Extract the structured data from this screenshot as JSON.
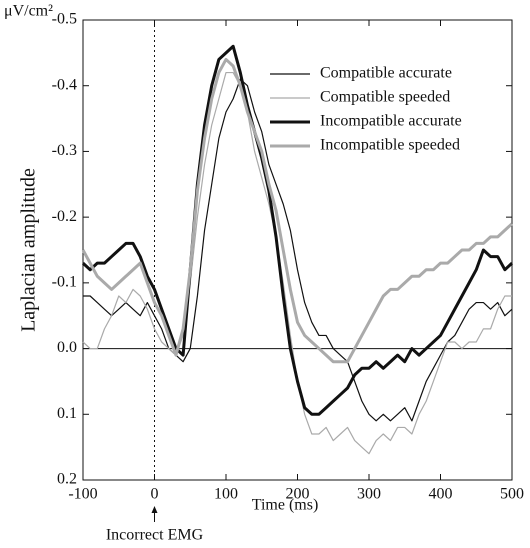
{
  "chart_data": {
    "type": "line",
    "unit_label": "μV/cm²",
    "y_label": "Laplacian amplitude",
    "x_label": "Time (ms)",
    "annotation": "Incorrect EMG",
    "annotation_x": 0,
    "y_inverted": true,
    "legend": "upper right",
    "x": [
      -100,
      -90,
      -80,
      -70,
      -60,
      -50,
      -40,
      -30,
      -20,
      -10,
      0,
      10,
      20,
      30,
      40,
      50,
      60,
      70,
      80,
      90,
      100,
      110,
      120,
      130,
      140,
      150,
      160,
      170,
      180,
      190,
      200,
      210,
      220,
      230,
      240,
      250,
      260,
      270,
      280,
      290,
      300,
      310,
      320,
      330,
      340,
      350,
      360,
      370,
      380,
      390,
      400,
      410,
      420,
      430,
      440,
      450,
      460,
      470,
      480,
      490,
      500
    ],
    "series": [
      {
        "name": "Compatible accurate",
        "color": "#111111",
        "linewidth": 1.2,
        "values": [
          -0.08,
          -0.08,
          -0.07,
          -0.06,
          -0.05,
          -0.06,
          -0.07,
          -0.06,
          -0.05,
          -0.07,
          -0.05,
          -0.03,
          0.0,
          0.01,
          0.02,
          0.0,
          -0.08,
          -0.18,
          -0.25,
          -0.32,
          -0.36,
          -0.38,
          -0.41,
          -0.4,
          -0.36,
          -0.33,
          -0.28,
          -0.25,
          -0.22,
          -0.18,
          -0.12,
          -0.07,
          -0.04,
          -0.02,
          -0.02,
          0.0,
          0.01,
          0.02,
          0.05,
          0.08,
          0.1,
          0.11,
          0.1,
          0.11,
          0.1,
          0.09,
          0.11,
          0.08,
          0.05,
          0.03,
          0.01,
          -0.01,
          -0.02,
          -0.04,
          -0.06,
          -0.07,
          -0.07,
          -0.06,
          -0.07,
          -0.05,
          -0.06
        ]
      },
      {
        "name": "Compatible speeded",
        "color": "#aaaaaa",
        "linewidth": 1.2,
        "values": [
          -0.01,
          0.0,
          0.0,
          -0.03,
          -0.05,
          -0.08,
          -0.07,
          -0.09,
          -0.08,
          -0.06,
          -0.03,
          -0.01,
          0.0,
          0.01,
          -0.02,
          -0.1,
          -0.2,
          -0.28,
          -0.34,
          -0.38,
          -0.42,
          -0.42,
          -0.4,
          -0.36,
          -0.3,
          -0.26,
          -0.22,
          -0.17,
          -0.1,
          -0.02,
          0.05,
          0.1,
          0.13,
          0.13,
          0.12,
          0.14,
          0.13,
          0.12,
          0.14,
          0.15,
          0.16,
          0.14,
          0.13,
          0.14,
          0.12,
          0.12,
          0.13,
          0.1,
          0.08,
          0.05,
          0.02,
          -0.01,
          -0.01,
          0.0,
          -0.01,
          -0.01,
          -0.03,
          -0.03,
          -0.06,
          -0.08,
          -0.08
        ]
      },
      {
        "name": "Incompatible accurate",
        "color": "#111111",
        "linewidth": 3,
        "values": [
          -0.13,
          -0.12,
          -0.13,
          -0.13,
          -0.14,
          -0.15,
          -0.16,
          -0.16,
          -0.14,
          -0.11,
          -0.09,
          -0.06,
          -0.03,
          0.0,
          0.01,
          -0.12,
          -0.25,
          -0.34,
          -0.4,
          -0.44,
          -0.45,
          -0.46,
          -0.42,
          -0.37,
          -0.33,
          -0.29,
          -0.24,
          -0.17,
          -0.08,
          0.0,
          0.05,
          0.09,
          0.1,
          0.1,
          0.09,
          0.08,
          0.07,
          0.06,
          0.04,
          0.03,
          0.03,
          0.02,
          0.03,
          0.02,
          0.01,
          0.02,
          0.0,
          0.01,
          0.0,
          -0.01,
          -0.02,
          -0.04,
          -0.06,
          -0.08,
          -0.1,
          -0.12,
          -0.15,
          -0.14,
          -0.14,
          -0.12,
          -0.13
        ]
      },
      {
        "name": "Incompatible speeded",
        "color": "#aaaaaa",
        "linewidth": 3,
        "values": [
          -0.15,
          -0.13,
          -0.11,
          -0.1,
          -0.09,
          -0.1,
          -0.11,
          -0.12,
          -0.13,
          -0.1,
          -0.07,
          -0.05,
          -0.02,
          0.01,
          -0.03,
          -0.12,
          -0.24,
          -0.32,
          -0.38,
          -0.42,
          -0.44,
          -0.43,
          -0.4,
          -0.36,
          -0.33,
          -0.3,
          -0.25,
          -0.21,
          -0.15,
          -0.09,
          -0.04,
          -0.02,
          -0.01,
          0.0,
          0.01,
          0.02,
          0.02,
          0.02,
          0.0,
          -0.02,
          -0.04,
          -0.06,
          -0.08,
          -0.09,
          -0.09,
          -0.1,
          -0.11,
          -0.11,
          -0.12,
          -0.12,
          -0.13,
          -0.13,
          -0.14,
          -0.15,
          -0.15,
          -0.16,
          -0.16,
          -0.17,
          -0.17,
          -0.18,
          -0.19
        ]
      }
    ],
    "xlim": [
      -100,
      500
    ],
    "xticks": [
      -100,
      0,
      100,
      200,
      300,
      400,
      500
    ],
    "ylim": [
      -0.5,
      0.2
    ],
    "yticks": [
      -0.5,
      -0.4,
      -0.3,
      -0.2,
      -0.1,
      {
        "value": 0,
        "label": "0.0"
      },
      0.1,
      0.2
    ]
  }
}
